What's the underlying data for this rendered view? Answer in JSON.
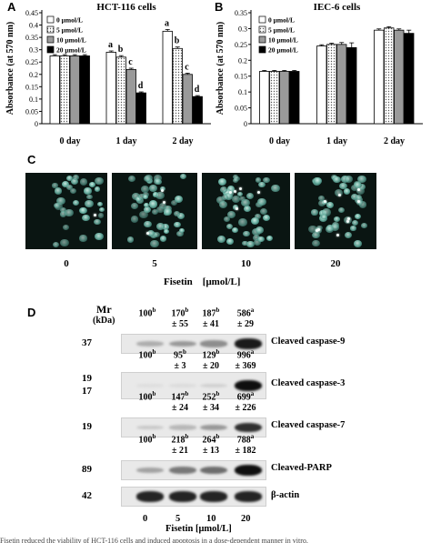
{
  "panels": {
    "A": {
      "letter": "A",
      "chart_data": {
        "type": "bar",
        "title": "HCT-116 cells",
        "ylabel": "Absorbance (at 570 nm)",
        "categories": [
          "0 day",
          "1 day",
          "2 day"
        ],
        "ylim": [
          0,
          0.45
        ],
        "yticks": [
          "0",
          "0.05",
          "0.1",
          "0.15",
          "0.2",
          "0.25",
          "0.3",
          "0.35",
          "0.4",
          "0.45"
        ],
        "legend_position": "top-left",
        "series": [
          {
            "name": "0 μmol/L",
            "values": [
              0.275,
              0.29,
              0.375
            ],
            "errors": [
              0.005,
              0.005,
              0.007
            ],
            "letters": [
              "",
              "a",
              "a"
            ],
            "fill": "#ffffff"
          },
          {
            "name": "5 μmol/L",
            "values": [
              0.275,
              0.27,
              0.305
            ],
            "errors": [
              0.005,
              0.006,
              0.006
            ],
            "letters": [
              "",
              "b",
              "b"
            ],
            "fill": "dots"
          },
          {
            "name": "10 μmol/L",
            "values": [
              0.275,
              0.22,
              0.2
            ],
            "errors": [
              0.005,
              0.005,
              0.005
            ],
            "letters": [
              "",
              "c",
              "c"
            ],
            "fill": "#9a9a9a"
          },
          {
            "name": "20 μmol/L",
            "values": [
              0.275,
              0.125,
              0.11
            ],
            "errors": [
              0.005,
              0.004,
              0.004
            ],
            "letters": [
              "",
              "d",
              "d"
            ],
            "fill": "#000000"
          }
        ]
      }
    },
    "B": {
      "letter": "B",
      "chart_data": {
        "type": "bar",
        "title": "IEC-6 cells",
        "ylabel": "Absorbance (at 570 nm)",
        "categories": [
          "0 day",
          "1 day",
          "2 day"
        ],
        "ylim": [
          0,
          0.35
        ],
        "yticks": [
          "0",
          "0.05",
          "0.1",
          "0.15",
          "0.2",
          "0.25",
          "0.3",
          "0.35"
        ],
        "legend_position": "top-left",
        "series": [
          {
            "name": "0 μmol/L",
            "values": [
              0.165,
              0.245,
              0.295
            ],
            "errors": [
              0.003,
              0.004,
              0.004
            ],
            "fill": "#ffffff"
          },
          {
            "name": "5 μmol/L",
            "values": [
              0.165,
              0.25,
              0.302
            ],
            "errors": [
              0.003,
              0.004,
              0.004
            ],
            "fill": "dots"
          },
          {
            "name": "10 μmol/L",
            "values": [
              0.165,
              0.25,
              0.295
            ],
            "errors": [
              0.003,
              0.006,
              0.004
            ],
            "fill": "#9a9a9a"
          },
          {
            "name": "20 μmol/L",
            "values": [
              0.165,
              0.24,
              0.285
            ],
            "errors": [
              0.003,
              0.015,
              0.01
            ],
            "fill": "#000000"
          }
        ]
      }
    },
    "C": {
      "letter": "C",
      "images": [
        {
          "label": "0",
          "density": 0.55,
          "bright_count": 1
        },
        {
          "label": "5",
          "density": 0.8,
          "bright_count": 3
        },
        {
          "label": "10",
          "density": 0.75,
          "bright_count": 5
        },
        {
          "label": "20",
          "density": 0.85,
          "bright_count": 9
        }
      ],
      "xlabel": "Fisetin    [μmol/L]"
    },
    "D": {
      "letter": "D",
      "mr_label": "Mr",
      "kda_label": "(kDa)",
      "rows": [
        {
          "values": [
            "100b",
            "170b ± 55",
            "187b ± 41",
            "586a ± 29"
          ],
          "kda": [
            "37"
          ],
          "protein": "Cleaved caspase-9",
          "intensity": [
            0.25,
            0.35,
            0.4,
            0.95
          ]
        },
        {
          "values": [
            "100b",
            "95b ± 3",
            "129b ± 20",
            "996a ± 369"
          ],
          "kda": [
            "19",
            "17"
          ],
          "protein": "Cleaved caspase-3",
          "intensity": [
            0.02,
            0.03,
            0.08,
            1.0
          ]
        },
        {
          "values": [
            "100b",
            "147b ± 24",
            "252b ± 34",
            "699a ± 226"
          ],
          "kda": [
            "19"
          ],
          "protein": "Cleaved caspase-7",
          "intensity": [
            0.12,
            0.2,
            0.35,
            0.85
          ]
        },
        {
          "values": [
            "100b",
            "218b ± 21",
            "264b ± 13",
            "788a ± 182"
          ],
          "kda": [
            "89"
          ],
          "protein": "Cleaved-PARP",
          "intensity": [
            0.3,
            0.5,
            0.55,
            1.0
          ]
        }
      ],
      "actin": {
        "kda": "42",
        "protein": "β-actin",
        "intensity": [
          0.9,
          0.9,
          0.9,
          0.9
        ]
      },
      "lanes": [
        "0",
        "5",
        "10",
        "20"
      ],
      "xlabel": "Fisetin [μmol/L]"
    }
  },
  "caption": "Fisetin reduced the viability of HCT-116 cells and induced apoptosis in a dose-dependent manner in vitro."
}
